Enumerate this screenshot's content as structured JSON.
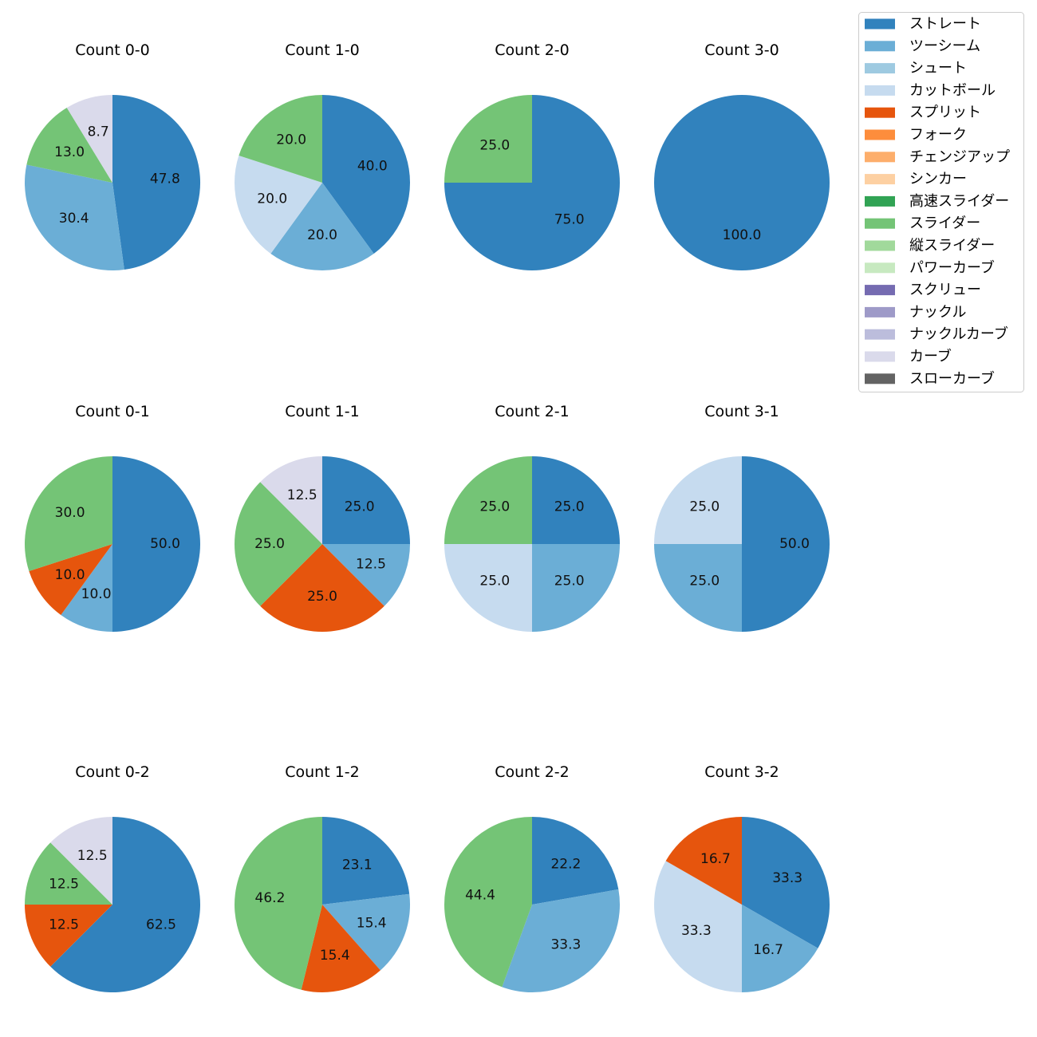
{
  "colors": {
    "ストレート": "#3182bd",
    "ツーシーム": "#6baed6",
    "シュート": "#9ecae1",
    "カットボール": "#c6dbef",
    "スプリット": "#e6550d",
    "フォーク": "#fd8d3c",
    "チェンジアップ": "#fdae6b",
    "シンカー": "#fdd0a2",
    "高速スライダー": "#31a354",
    "スライダー": "#74c476",
    "縦スライダー": "#a1d99b",
    "パワーカーブ": "#c7e9c0",
    "スクリュー": "#756bb1",
    "ナックル": "#9e9ac8",
    "ナックルカーブ": "#bcbddc",
    "カーブ": "#dadaeb",
    "スローカーブ": "#636363"
  },
  "chart_data": {
    "type": "pie",
    "legend": [
      "ストレート",
      "ツーシーム",
      "シュート",
      "カットボール",
      "スプリット",
      "フォーク",
      "チェンジアップ",
      "シンカー",
      "高速スライダー",
      "スライダー",
      "縦スライダー",
      "パワーカーブ",
      "スクリュー",
      "ナックル",
      "ナックルカーブ",
      "カーブ",
      "スローカーブ"
    ],
    "legend_position": "top-right",
    "charts": [
      {
        "title": "Count 0-0",
        "slices": [
          {
            "category": "ストレート",
            "value": 47.8,
            "label": "47.8"
          },
          {
            "category": "ツーシーム",
            "value": 30.4,
            "label": "30.4"
          },
          {
            "category": "スライダー",
            "value": 13.0,
            "label": "13.0"
          },
          {
            "category": "カーブ",
            "value": 8.7,
            "label": "8.7"
          }
        ]
      },
      {
        "title": "Count 1-0",
        "slices": [
          {
            "category": "ストレート",
            "value": 40.0,
            "label": "40.0"
          },
          {
            "category": "ツーシーム",
            "value": 20.0,
            "label": "20.0"
          },
          {
            "category": "カットボール",
            "value": 20.0,
            "label": "20.0"
          },
          {
            "category": "スライダー",
            "value": 20.0,
            "label": "20.0"
          }
        ]
      },
      {
        "title": "Count 2-0",
        "slices": [
          {
            "category": "ストレート",
            "value": 75.0,
            "label": "75.0"
          },
          {
            "category": "スライダー",
            "value": 25.0,
            "label": "25.0"
          }
        ]
      },
      {
        "title": "Count 3-0",
        "slices": [
          {
            "category": "ストレート",
            "value": 100.0,
            "label": "100.0"
          }
        ]
      },
      {
        "title": "Count 0-1",
        "slices": [
          {
            "category": "ストレート",
            "value": 50.0,
            "label": "50.0"
          },
          {
            "category": "ツーシーム",
            "value": 10.0,
            "label": "10.0"
          },
          {
            "category": "スプリット",
            "value": 10.0,
            "label": "10.0"
          },
          {
            "category": "スライダー",
            "value": 30.0,
            "label": "30.0"
          }
        ]
      },
      {
        "title": "Count 1-1",
        "slices": [
          {
            "category": "ストレート",
            "value": 25.0,
            "label": "25.0"
          },
          {
            "category": "ツーシーム",
            "value": 12.5,
            "label": "12.5"
          },
          {
            "category": "スプリット",
            "value": 25.0,
            "label": "25.0"
          },
          {
            "category": "スライダー",
            "value": 25.0,
            "label": "25.0"
          },
          {
            "category": "カーブ",
            "value": 12.5,
            "label": "12.5"
          }
        ]
      },
      {
        "title": "Count 2-1",
        "slices": [
          {
            "category": "ストレート",
            "value": 25.0,
            "label": "25.0"
          },
          {
            "category": "ツーシーム",
            "value": 25.0,
            "label": "25.0"
          },
          {
            "category": "カットボール",
            "value": 25.0,
            "label": "25.0"
          },
          {
            "category": "スライダー",
            "value": 25.0,
            "label": "25.0"
          }
        ]
      },
      {
        "title": "Count 3-1",
        "slices": [
          {
            "category": "ストレート",
            "value": 50.0,
            "label": "50.0"
          },
          {
            "category": "ツーシーム",
            "value": 25.0,
            "label": "25.0"
          },
          {
            "category": "カットボール",
            "value": 25.0,
            "label": "25.0"
          }
        ]
      },
      {
        "title": "Count 0-2",
        "slices": [
          {
            "category": "ストレート",
            "value": 62.5,
            "label": "62.5"
          },
          {
            "category": "スプリット",
            "value": 12.5,
            "label": "12.5"
          },
          {
            "category": "スライダー",
            "value": 12.5,
            "label": "12.5"
          },
          {
            "category": "カーブ",
            "value": 12.5,
            "label": "12.5"
          }
        ]
      },
      {
        "title": "Count 1-2",
        "slices": [
          {
            "category": "ストレート",
            "value": 23.1,
            "label": "23.1"
          },
          {
            "category": "ツーシーム",
            "value": 15.4,
            "label": "15.4"
          },
          {
            "category": "スプリット",
            "value": 15.4,
            "label": "15.4"
          },
          {
            "category": "スライダー",
            "value": 46.2,
            "label": "46.2"
          }
        ]
      },
      {
        "title": "Count 2-2",
        "slices": [
          {
            "category": "ストレート",
            "value": 22.2,
            "label": "22.2"
          },
          {
            "category": "ツーシーム",
            "value": 33.3,
            "label": "33.3"
          },
          {
            "category": "スライダー",
            "value": 44.4,
            "label": "44.4"
          }
        ]
      },
      {
        "title": "Count 3-2",
        "slices": [
          {
            "category": "ストレート",
            "value": 33.3,
            "label": "33.3"
          },
          {
            "category": "ツーシーム",
            "value": 16.7,
            "label": "16.7"
          },
          {
            "category": "カットボール",
            "value": 33.3,
            "label": "33.3"
          },
          {
            "category": "スプリット",
            "value": 16.7,
            "label": "16.7"
          }
        ]
      }
    ]
  }
}
